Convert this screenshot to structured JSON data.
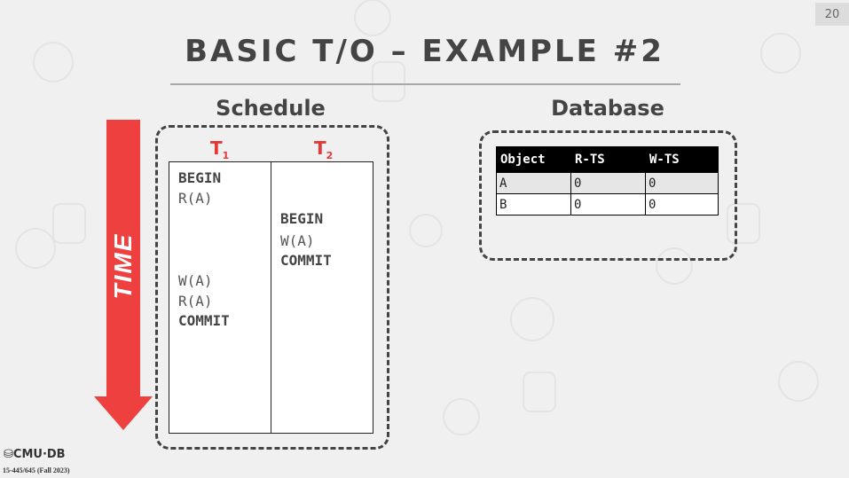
{
  "slide_number": "20",
  "title": "BASIC T/O – EXAMPLE #2",
  "schedule_label": "Schedule",
  "database_label": "Database",
  "time_label": "TIME",
  "transactions": [
    {
      "name": "T",
      "sub": "1"
    },
    {
      "name": "T",
      "sub": "2"
    }
  ],
  "schedule": {
    "t1": {
      "begin": "BEGIN",
      "op1": "R(A)",
      "op2": "W(A)",
      "op3": "R(A)",
      "commit": "COMMIT"
    },
    "t2": {
      "begin": "BEGIN",
      "op1": "W(A)",
      "commit": "COMMIT"
    }
  },
  "db_table": {
    "headers": [
      "Object",
      "R-TS",
      "W-TS"
    ],
    "rows": [
      [
        "A",
        "0",
        "0"
      ],
      [
        "B",
        "0",
        "0"
      ]
    ]
  },
  "footer": {
    "logo": "CMU·DB",
    "course": "15-445/645 (Fall 2023)"
  },
  "colors": {
    "accent_red": "#e53935",
    "arrow_red": "#ef4040"
  }
}
